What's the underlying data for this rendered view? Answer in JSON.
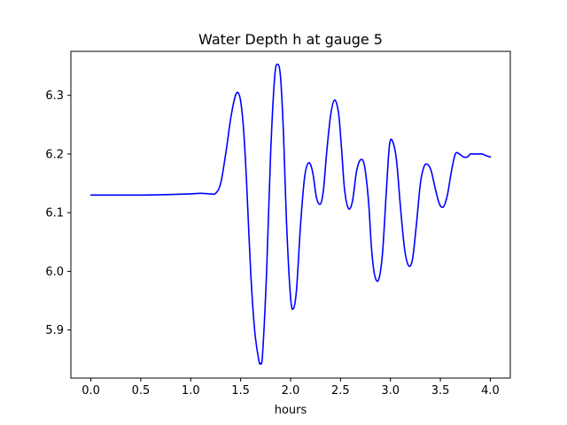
{
  "chart_data": {
    "type": "line",
    "title": "Water Depth h at gauge 5",
    "xlabel": "hours",
    "ylabel": "",
    "xlim": [
      -0.2,
      4.2
    ],
    "ylim": [
      5.818,
      6.375
    ],
    "xticks": [
      0.0,
      0.5,
      1.0,
      1.5,
      2.0,
      2.5,
      3.0,
      3.5,
      4.0
    ],
    "xtick_labels": [
      "0.0",
      "0.5",
      "1.0",
      "1.5",
      "2.0",
      "2.5",
      "3.0",
      "3.5",
      "4.0"
    ],
    "yticks": [
      5.9,
      6.0,
      6.1,
      6.2,
      6.3
    ],
    "ytick_labels": [
      "5.9",
      "6.0",
      "6.1",
      "6.2",
      "6.3"
    ],
    "grid": false,
    "series": [
      {
        "color": "#0000ff",
        "x": [
          0.0,
          0.2,
          0.5,
          0.8,
          1.0,
          1.1,
          1.2,
          1.25,
          1.3,
          1.35,
          1.4,
          1.44,
          1.47,
          1.5,
          1.53,
          1.56,
          1.6,
          1.64,
          1.68,
          1.7,
          1.72,
          1.76,
          1.8,
          1.84,
          1.87,
          1.9,
          1.93,
          1.96,
          2.0,
          2.03,
          2.06,
          2.1,
          2.14,
          2.18,
          2.22,
          2.26,
          2.3,
          2.33,
          2.36,
          2.4,
          2.44,
          2.48,
          2.51,
          2.54,
          2.58,
          2.62,
          2.66,
          2.7,
          2.74,
          2.78,
          2.81,
          2.84,
          2.88,
          2.92,
          2.96,
          2.99,
          3.02,
          3.06,
          3.1,
          3.14,
          3.18,
          3.22,
          3.26,
          3.3,
          3.34,
          3.38,
          3.41,
          3.45,
          3.49,
          3.53,
          3.57,
          3.61,
          3.65,
          3.69,
          3.73,
          3.77,
          3.8,
          3.84,
          3.88,
          3.92,
          3.96,
          4.0
        ],
        "y": [
          6.13,
          6.13,
          6.13,
          6.131,
          6.132,
          6.133,
          6.132,
          6.133,
          6.15,
          6.2,
          6.26,
          6.295,
          6.305,
          6.29,
          6.24,
          6.15,
          6.0,
          5.9,
          5.85,
          5.843,
          5.86,
          6.0,
          6.2,
          6.33,
          6.353,
          6.33,
          6.23,
          6.08,
          5.955,
          5.937,
          5.97,
          6.08,
          6.16,
          6.185,
          6.17,
          6.125,
          6.115,
          6.14,
          6.2,
          6.265,
          6.292,
          6.27,
          6.21,
          6.14,
          6.107,
          6.12,
          6.17,
          6.19,
          6.18,
          6.12,
          6.04,
          5.995,
          5.985,
          6.03,
          6.14,
          6.215,
          6.222,
          6.19,
          6.11,
          6.04,
          6.01,
          6.02,
          6.08,
          6.15,
          6.18,
          6.181,
          6.17,
          6.14,
          6.115,
          6.11,
          6.13,
          6.17,
          6.2,
          6.2,
          6.195,
          6.195,
          6.2,
          6.2,
          6.2,
          6.2,
          6.197,
          6.195
        ]
      }
    ]
  }
}
